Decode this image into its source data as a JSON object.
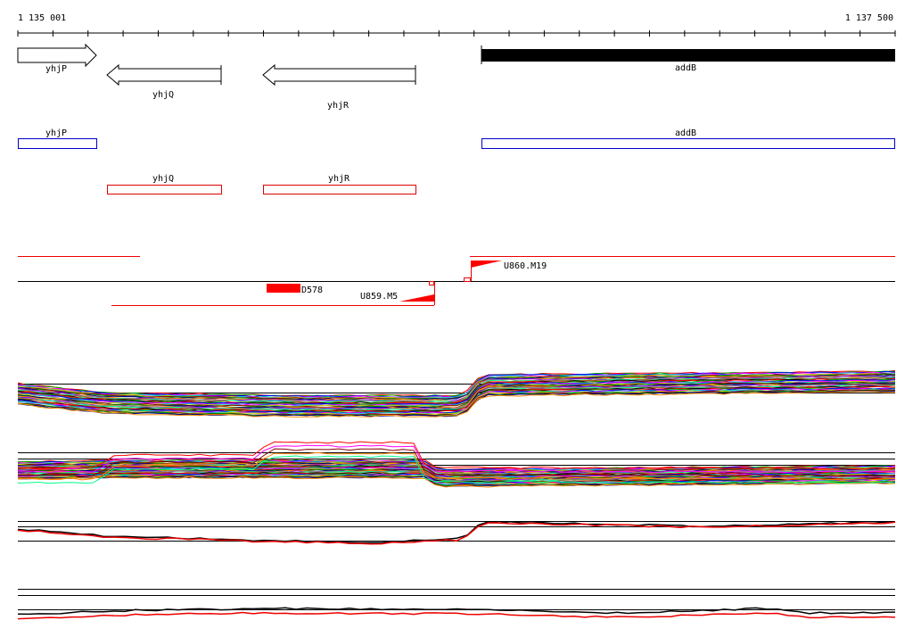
{
  "ruler": {
    "start": "1 135 001",
    "end": "1 137 500"
  },
  "genes": [
    "yhjP",
    "yhjQ",
    "yhjR",
    "addB"
  ],
  "annotations": [
    "yhjP",
    "addB",
    "yhjQ",
    "yhjR"
  ],
  "features": [
    "D578",
    "U859.M5",
    "U860.M19"
  ]
}
